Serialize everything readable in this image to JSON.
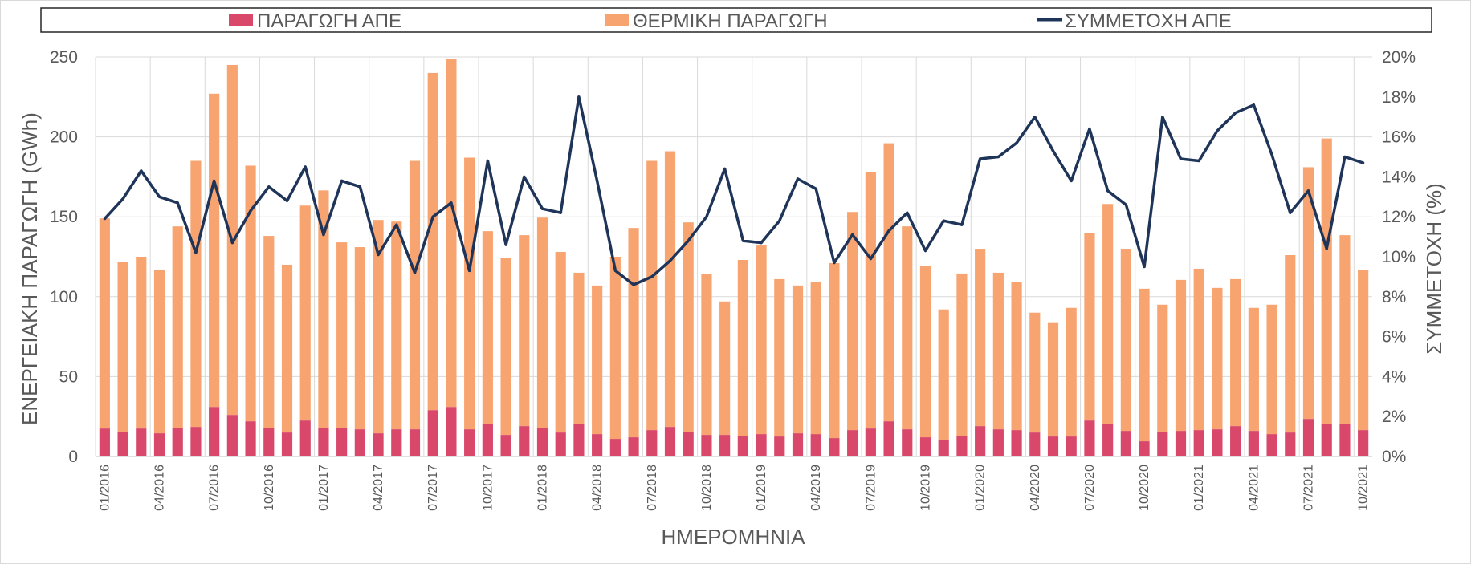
{
  "chart_data": {
    "type": "bar",
    "xlabel": "ΗΜΕΡΟΜΗΝΙΑ",
    "ylabel": "ΕΝΕΡΓΕΙΑΚΗ ΠΑΡΑΓΩΓΗ (GWh)",
    "y2label": "ΣΥΜΜΕΤΟΧΗ (%)",
    "ylim": [
      0,
      250
    ],
    "y2lim": [
      0,
      20
    ],
    "yticks": [
      "0",
      "50",
      "100",
      "150",
      "200",
      "250"
    ],
    "y2ticks": [
      "0%",
      "2%",
      "4%",
      "6%",
      "8%",
      "10%",
      "12%",
      "14%",
      "16%",
      "18%",
      "20%"
    ],
    "grid": true,
    "legend_position": "top",
    "categories": [
      "01/2016",
      "02/2016",
      "03/2016",
      "04/2016",
      "05/2016",
      "06/2016",
      "07/2016",
      "08/2016",
      "09/2016",
      "10/2016",
      "11/2016",
      "12/2016",
      "01/2017",
      "02/2017",
      "03/2017",
      "04/2017",
      "05/2017",
      "06/2017",
      "07/2017",
      "08/2017",
      "09/2017",
      "10/2017",
      "11/2017",
      "12/2017",
      "01/2018",
      "02/2018",
      "03/2018",
      "04/2018",
      "05/2018",
      "06/2018",
      "07/2018",
      "08/2018",
      "09/2018",
      "10/2018",
      "11/2018",
      "12/2018",
      "01/2019",
      "02/2019",
      "03/2019",
      "04/2019",
      "05/2019",
      "06/2019",
      "07/2019",
      "08/2019",
      "09/2019",
      "10/2019",
      "11/2019",
      "12/2019",
      "01/2020",
      "02/2020",
      "03/2020",
      "04/2020",
      "05/2020",
      "06/2020",
      "07/2020",
      "08/2020",
      "09/2020",
      "10/2020",
      "11/2020",
      "12/2020",
      "01/2021",
      "02/2021",
      "03/2021",
      "04/2021",
      "05/2021",
      "06/2021",
      "07/2021",
      "08/2021",
      "09/2021",
      "10/2021"
    ],
    "tick_labels": [
      "01/2016",
      "04/2016",
      "07/2016",
      "10/2016",
      "01/2017",
      "04/2017",
      "07/2017",
      "10/2017",
      "01/2018",
      "04/2018",
      "07/2018",
      "10/2018",
      "01/2019",
      "04/2019",
      "07/2019",
      "10/2019",
      "01/2020",
      "04/2020",
      "07/2020",
      "10/2020",
      "01/2021",
      "04/2021",
      "07/2021",
      "10/2021"
    ],
    "series": [
      {
        "name": "ΠΑΡΑΓΩΓΗ ΑΠΕ",
        "type": "bar",
        "axis": "left",
        "color": "#D9476A",
        "values": [
          17.5,
          15.5,
          17.5,
          14.5,
          18,
          18.5,
          31,
          26,
          22,
          18,
          15,
          22.5,
          18,
          18,
          17,
          14.5,
          17,
          17,
          29,
          31,
          17,
          20.5,
          13.5,
          19,
          18,
          15,
          20.5,
          14,
          11,
          12,
          16.5,
          18.5,
          15.5,
          13.5,
          13.5,
          13,
          14,
          12.5,
          14.5,
          14,
          11.5,
          16.5,
          17.5,
          22,
          17,
          12,
          10.5,
          13,
          19,
          17,
          16.5,
          15,
          12.5,
          12.5,
          22.5,
          20.5,
          16,
          9.5,
          15.5,
          16,
          16.5,
          17,
          19,
          16,
          14,
          15,
          23.5,
          20.5,
          20.5,
          16.5
        ]
      },
      {
        "name": "ΘΕΡΜΙΚΗ ΠΑΡΑΓΩΓΗ",
        "type": "bar",
        "axis": "left",
        "color": "#F8A471",
        "values": [
          131.5,
          106.5,
          107.5,
          102,
          126,
          166.5,
          196,
          219,
          160,
          120,
          105,
          134.5,
          148.5,
          116,
          114,
          133.5,
          130,
          168,
          211,
          218,
          170,
          120.5,
          111,
          119.5,
          131.5,
          113,
          94.5,
          93,
          114,
          131,
          168.5,
          172.5,
          131,
          100.5,
          83.5,
          110,
          118,
          98.5,
          92.5,
          95,
          109.5,
          136.5,
          160.5,
          174,
          127,
          107,
          81.5,
          101.5,
          111,
          98,
          92.5,
          75,
          71.5,
          80.5,
          117.5,
          137.5,
          114,
          95.5,
          79.5,
          94.5,
          101,
          88.5,
          92,
          77,
          81,
          111,
          157.5,
          178.5,
          118,
          100
        ]
      },
      {
        "name": "ΣΥΜΜΕΤΟΧΗ ΑΠΕ",
        "type": "line",
        "axis": "right",
        "unit": "%",
        "color": "#1F3459",
        "values": [
          11.9,
          12.9,
          14.3,
          13.0,
          12.7,
          10.2,
          13.8,
          10.7,
          12.3,
          13.5,
          12.8,
          14.5,
          11.1,
          13.8,
          13.5,
          10.1,
          11.6,
          9.2,
          12.0,
          12.7,
          9.3,
          14.8,
          10.6,
          14.0,
          12.4,
          12.2,
          18.0,
          13.8,
          9.3,
          8.6,
          9.0,
          9.8,
          10.8,
          12.0,
          14.4,
          10.8,
          10.7,
          11.8,
          13.9,
          13.4,
          9.7,
          11.1,
          9.9,
          11.3,
          12.2,
          10.3,
          11.8,
          11.6,
          14.9,
          15.0,
          15.7,
          17.0,
          15.3,
          13.8,
          16.4,
          13.3,
          12.6,
          9.5,
          17.0,
          14.9,
          14.8,
          16.3,
          17.2,
          17.6,
          15.1,
          12.2,
          13.3,
          10.4,
          15.0,
          14.7
        ]
      }
    ]
  }
}
